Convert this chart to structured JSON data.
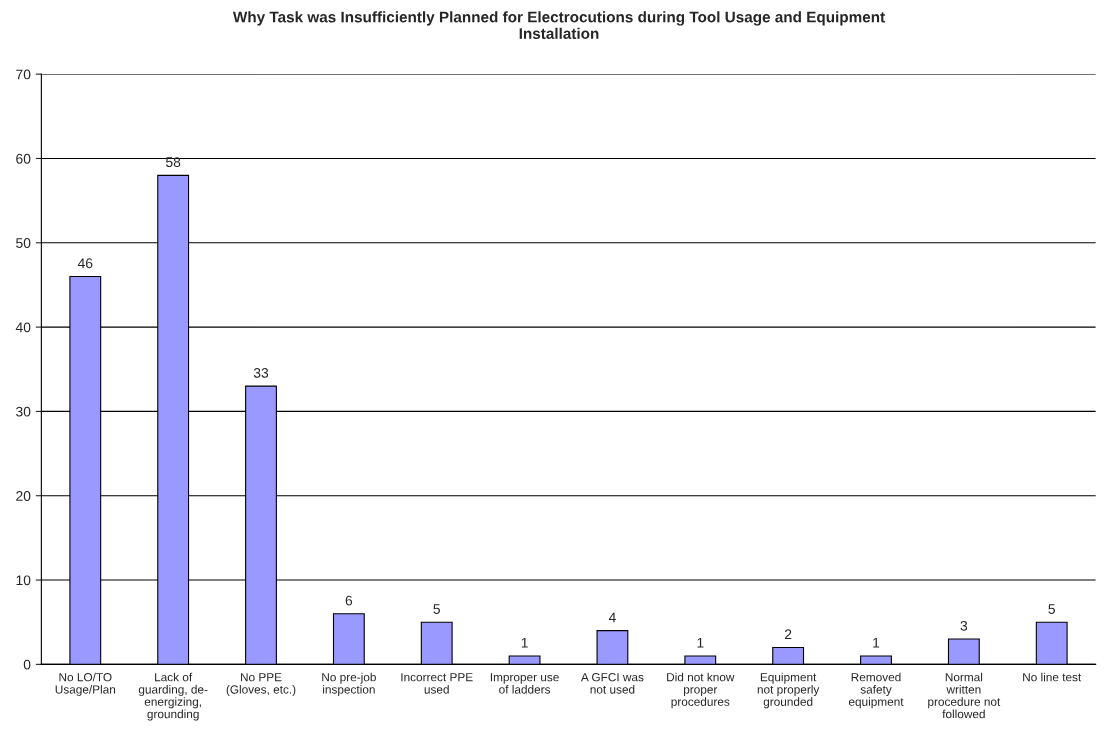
{
  "chart_data": {
    "type": "bar",
    "title": "Why Task was Insufficiently Planned for Electrocutions during Tool Usage and Equipment\nInstallation",
    "categories": [
      "No LO/TO\nUsage/Plan",
      "Lack of\nguarding, de-\nenergizing,\ngrounding",
      "No PPE\n(Gloves, etc.)",
      "No pre-job\ninspection",
      "Incorrect PPE\nused",
      "Improper use\nof ladders",
      "A GFCI was\nnot used",
      "Did not know\nproper\nprocedures",
      "Equipment\nnot properly\ngrounded",
      "Removed\nsafety\nequipment",
      "Normal\nwritten\nprocedure not\nfollowed",
      "No line test"
    ],
    "values": [
      46,
      58,
      33,
      6,
      5,
      1,
      4,
      1,
      2,
      1,
      3,
      5
    ],
    "color": "#9999ff",
    "ylim": [
      0,
      70
    ],
    "yticks": [
      0,
      10,
      20,
      30,
      40,
      50,
      60,
      70
    ],
    "grid": "y",
    "data_labels": true,
    "legend": false
  }
}
